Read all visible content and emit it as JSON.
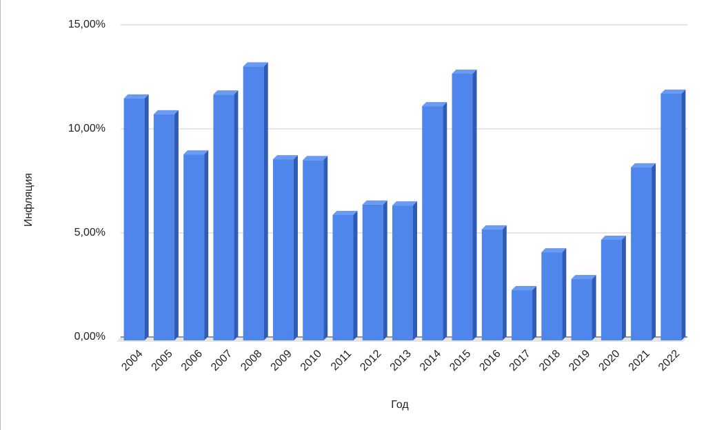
{
  "chart_data": {
    "type": "bar3d",
    "x_label": "Год",
    "y_label": "Инфляция",
    "categories": [
      "2004",
      "2005",
      "2006",
      "2007",
      "2008",
      "2009",
      "2010",
      "2011",
      "2012",
      "2013",
      "2014",
      "2015",
      "2016",
      "2017",
      "2018",
      "2019",
      "2020",
      "2021",
      "2022"
    ],
    "values": [
      11.46,
      10.7,
      8.77,
      11.65,
      13.0,
      8.54,
      8.5,
      5.86,
      6.36,
      6.32,
      11.09,
      12.65,
      5.17,
      2.25,
      4.07,
      2.78,
      4.67,
      8.15,
      11.69
    ],
    "color": "#4f86ec",
    "ylim": [
      0,
      15
    ],
    "yticks": [
      {
        "value": 0,
        "label": "0,00%"
      },
      {
        "value": 5,
        "label": "5,00%"
      },
      {
        "value": 10,
        "label": "10,00%"
      },
      {
        "value": 15,
        "label": "15,00%"
      }
    ],
    "grid": true
  }
}
